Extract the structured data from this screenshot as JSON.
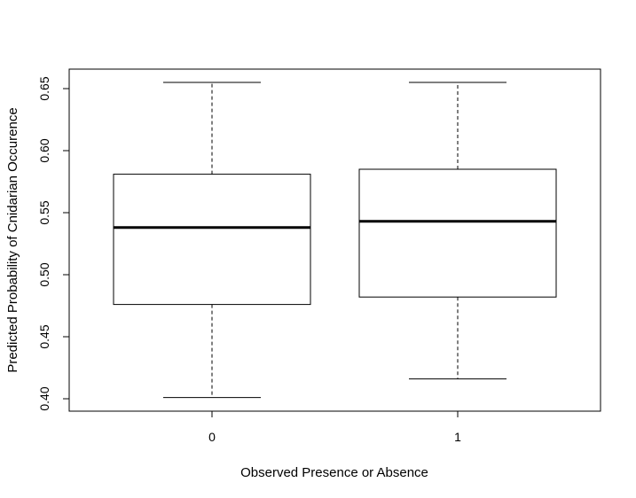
{
  "chart_data": {
    "type": "boxplot",
    "title": "",
    "xlabel": "Observed Presence or Absence",
    "ylabel": "Predicted Probability of Cnidarian Occurence",
    "categories": [
      "0",
      "1"
    ],
    "ylim": [
      0.39,
      0.665
    ],
    "yticks": [
      0.4,
      0.45,
      0.5,
      0.55,
      0.6,
      0.65
    ],
    "ytick_labels": [
      "0.40",
      "0.45",
      "0.50",
      "0.55",
      "0.60",
      "0.65"
    ],
    "boxes": [
      {
        "category": "0",
        "whisker_low": 0.401,
        "q1": 0.476,
        "median": 0.538,
        "q3": 0.581,
        "whisker_high": 0.655
      },
      {
        "category": "1",
        "whisker_low": 0.416,
        "q1": 0.482,
        "median": 0.543,
        "q3": 0.585,
        "whisker_high": 0.655
      }
    ],
    "grid": false,
    "legend": "none"
  }
}
